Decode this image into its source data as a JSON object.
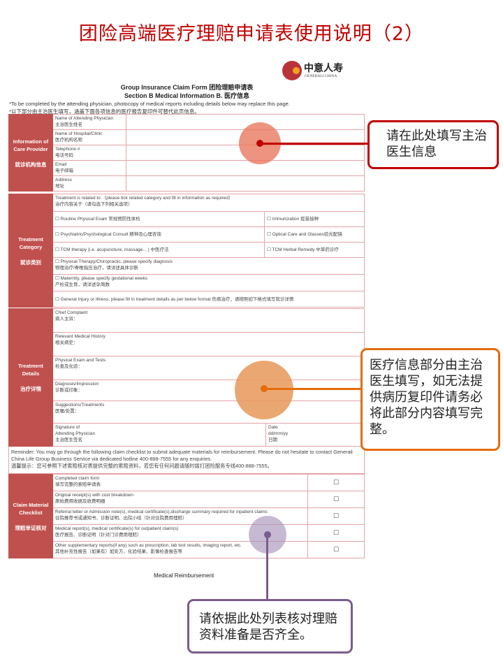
{
  "slide_title": "团险高端医疗理赔申请表使用说明（2）",
  "logo": {
    "cn": "中意人寿",
    "en": "GENERALI CHINA"
  },
  "form": {
    "title": "Group Insurance Claim Form 团险理赔申请表",
    "subtitle": "Section B Medical Information  B. 医疗信息",
    "note_en": "*To be completed by the attending physician, photocopy of medical reports including details below may replace this page.",
    "note_cn": "*以下部分由主治医生填写，涵盖下面各项信息的医疗报告复印件可替代此页信息。",
    "care_provider": {
      "header_en": "Information of Care Provider",
      "header_cn": "就诊机构信息",
      "rows": [
        {
          "en": "Name of Attending Physician",
          "cn": "主治医生姓名"
        },
        {
          "en": "Name of Hospital/Clinic",
          "cn": "医疗机构名称"
        },
        {
          "en": "Telephone #",
          "cn": "电话号码"
        },
        {
          "en": "Email",
          "cn": "电子邮箱"
        },
        {
          "en": "Address",
          "cn": "地址"
        }
      ]
    },
    "treatment_category": {
      "header_en": "Treatment Category",
      "header_cn": "就诊类别",
      "intro_en": "Treatment is related to （please tick related category and fill in information as required）",
      "intro_cn": "治疗内容关于（请勾选下列相关选项）",
      "pairs": [
        [
          "☐ Routine Physical Exam 常规预防性体检",
          "☐ Immunization 疫苗接种"
        ],
        [
          "☐ Psychiatric/Psychological Consult 精神及心理咨询",
          "☐ Optical Care and Glasses验光配镜"
        ],
        [
          "☐ TCM therapy (i.e. acupuncture, massage... ) 中医疗法",
          "☐ TCM Herbal Remedy  中草药诊疗"
        ]
      ],
      "singles": [
        {
          "en": "☐ Physical Therapy/Chiropractic, please specify diagnosis",
          "cn": "物理治疗/脊椎指压治疗，请详述具体诊断"
        },
        {
          "en": "☐ Maternity, please specify gestational weeks",
          "cn": "产检或生育，请详述孕周数"
        },
        {
          "en": "☐ General Injury or Illness, please fill in treatment details as per below format 伤病治疗，请按照如下格式填写就诊详情",
          "cn": ""
        }
      ]
    },
    "treatment_details": {
      "header_en": "Treatment Details",
      "header_cn": "治疗详情",
      "rows": [
        {
          "en": "Chief Complaint",
          "cn": "病人主诉："
        },
        {
          "en": "Relevant Medical History",
          "cn": "相关病史："
        },
        {
          "en": "Physical Exam and Tests",
          "cn": "检查及化验："
        },
        {
          "en": "Diagnosis/Impression",
          "cn": "诊断或印象："
        },
        {
          "en": "Suggestions/Treatments",
          "cn": "医嘱/处置："
        }
      ],
      "signature": {
        "l1": "Signature of",
        "l2": "Attending Physician",
        "cn": "主治医生签名"
      },
      "date": {
        "l1": "Date",
        "l2": "dd/mm/yy",
        "cn": "日期"
      }
    },
    "reminder_en": "Reminder: You may go through the following claim checklist to submit adequate materials for reimbursement. Please do not hesitate to contact Generali China Life Group Business Service via dedicated hotline 400-888-7555 for any enquiries.",
    "reminder_cn": "温馨提示：您可参照下述索赔核对表提供完整的索赔资料，若您有任何问题请随时拨打团险服务专线400-888-7555。",
    "checklist": {
      "header_en": "Claim Material Checklist",
      "header_cn": "理赔单证核对",
      "checkbox": "☐",
      "rows": [
        {
          "en": "Completed claim form",
          "cn": "填写完整的索赔申请表"
        },
        {
          "en": "Original receipt(s) with cost breakdown",
          "cn": "原始费用收据及收费明细"
        },
        {
          "en": "Referral letter or Admission note(s), medical certificate(s),discharge summary required for inpatient claims",
          "cn": "住院推荐书或通知书、诊断证明、出院小结（针对住院费用理赔）"
        },
        {
          "en": "Medical report(s), medical certificate(s) for outpatient claim(s)",
          "cn": "医疗报告、诊断证明（针对门诊费用理赔）"
        },
        {
          "en": "Other supplementary reports(if any) such as prescription, lab test results, imaging report, etc.",
          "cn": "其他补充性报告（如果有）如处方、化验结果、影像检查报告等"
        }
      ]
    },
    "footer": "Medical Reimbursement"
  },
  "callouts": [
    {
      "text": "请在此处填写主治医生信息",
      "color": "#c00000"
    },
    {
      "text": "医疗信息部分由主治医生填写，如无法提供病历复印件请务必将此部分内容填写完整。",
      "color": "#e46c0a"
    },
    {
      "text": "请依据此处列表核对理赔资料准备是否齐全。",
      "color": "#7a5c8e"
    }
  ]
}
